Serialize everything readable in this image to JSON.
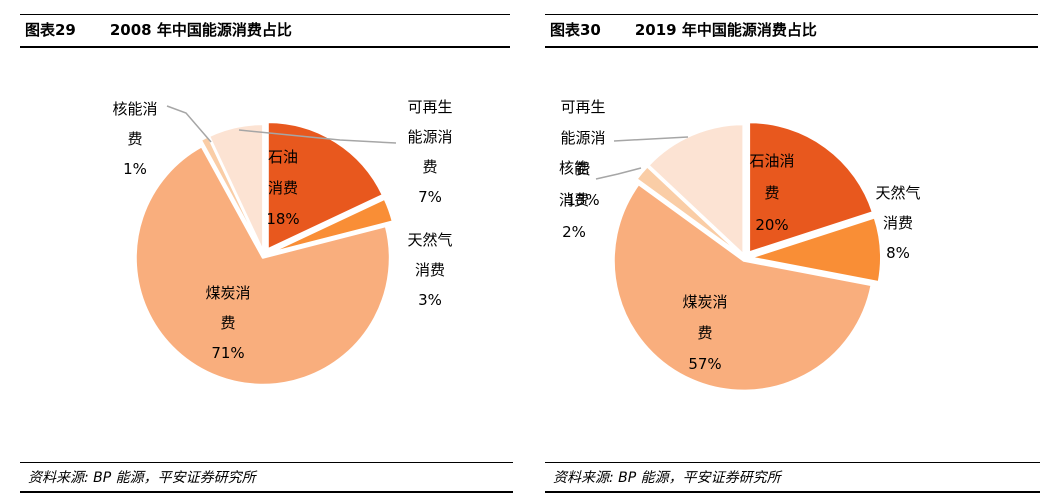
{
  "panels": [
    {
      "tag": "图表29",
      "title": "2008 年中国能源消费占比",
      "source": "资料来源: BP 能源，平安证券研究所"
    },
    {
      "tag": "图表30",
      "title": "2019 年中国能源消费占比",
      "source": "资料来源: BP 能源，平安证券研究所"
    }
  ],
  "chart_data": [
    {
      "type": "pie",
      "title": "2008 年中国能源消费占比",
      "categories": [
        "石油消费",
        "天然气消费",
        "煤炭消费",
        "核能消费",
        "可再生能源消费"
      ],
      "values": [
        18,
        3,
        71,
        1,
        7
      ],
      "unit": "%",
      "direction": "clockwise",
      "start_angle_deg": 0,
      "colors": [
        "#E8581E",
        "#F98E36",
        "#F9AE7D",
        "#FACDA6",
        "#FCE3D3"
      ],
      "leader_line_color": "#A6A6A6",
      "labels": [
        {
          "lines": [
            "石油",
            "消费",
            "18%"
          ]
        },
        {
          "lines": [
            "天然气",
            "消费",
            "3%"
          ]
        },
        {
          "lines": [
            "煤炭消",
            "费",
            "71%"
          ]
        },
        {
          "lines": [
            "核能消",
            "费",
            "1%"
          ]
        },
        {
          "lines": [
            "可再生",
            "能源消",
            "费",
            "7%"
          ]
        }
      ]
    },
    {
      "type": "pie",
      "title": "2019 年中国能源消费占比",
      "categories": [
        "石油消费",
        "天然气消费",
        "煤炭消费",
        "核能消费",
        "可再生能源消费"
      ],
      "values": [
        20,
        8,
        57,
        2,
        13
      ],
      "unit": "%",
      "direction": "clockwise",
      "start_angle_deg": 0,
      "colors": [
        "#E8581E",
        "#F98E36",
        "#F9AE7D",
        "#FACDA6",
        "#FCE3D3"
      ],
      "leader_line_color": "#A6A6A6",
      "labels": [
        {
          "lines": [
            "石油消",
            "费",
            "20%"
          ]
        },
        {
          "lines": [
            "天然气",
            "消费",
            "8%"
          ]
        },
        {
          "lines": [
            "煤炭消",
            "费",
            "57%"
          ]
        },
        {
          "lines": [
            "核能",
            "消费",
            "2%"
          ]
        },
        {
          "lines": [
            "可再生",
            "能源消",
            "费",
            "13%"
          ]
        }
      ]
    }
  ]
}
